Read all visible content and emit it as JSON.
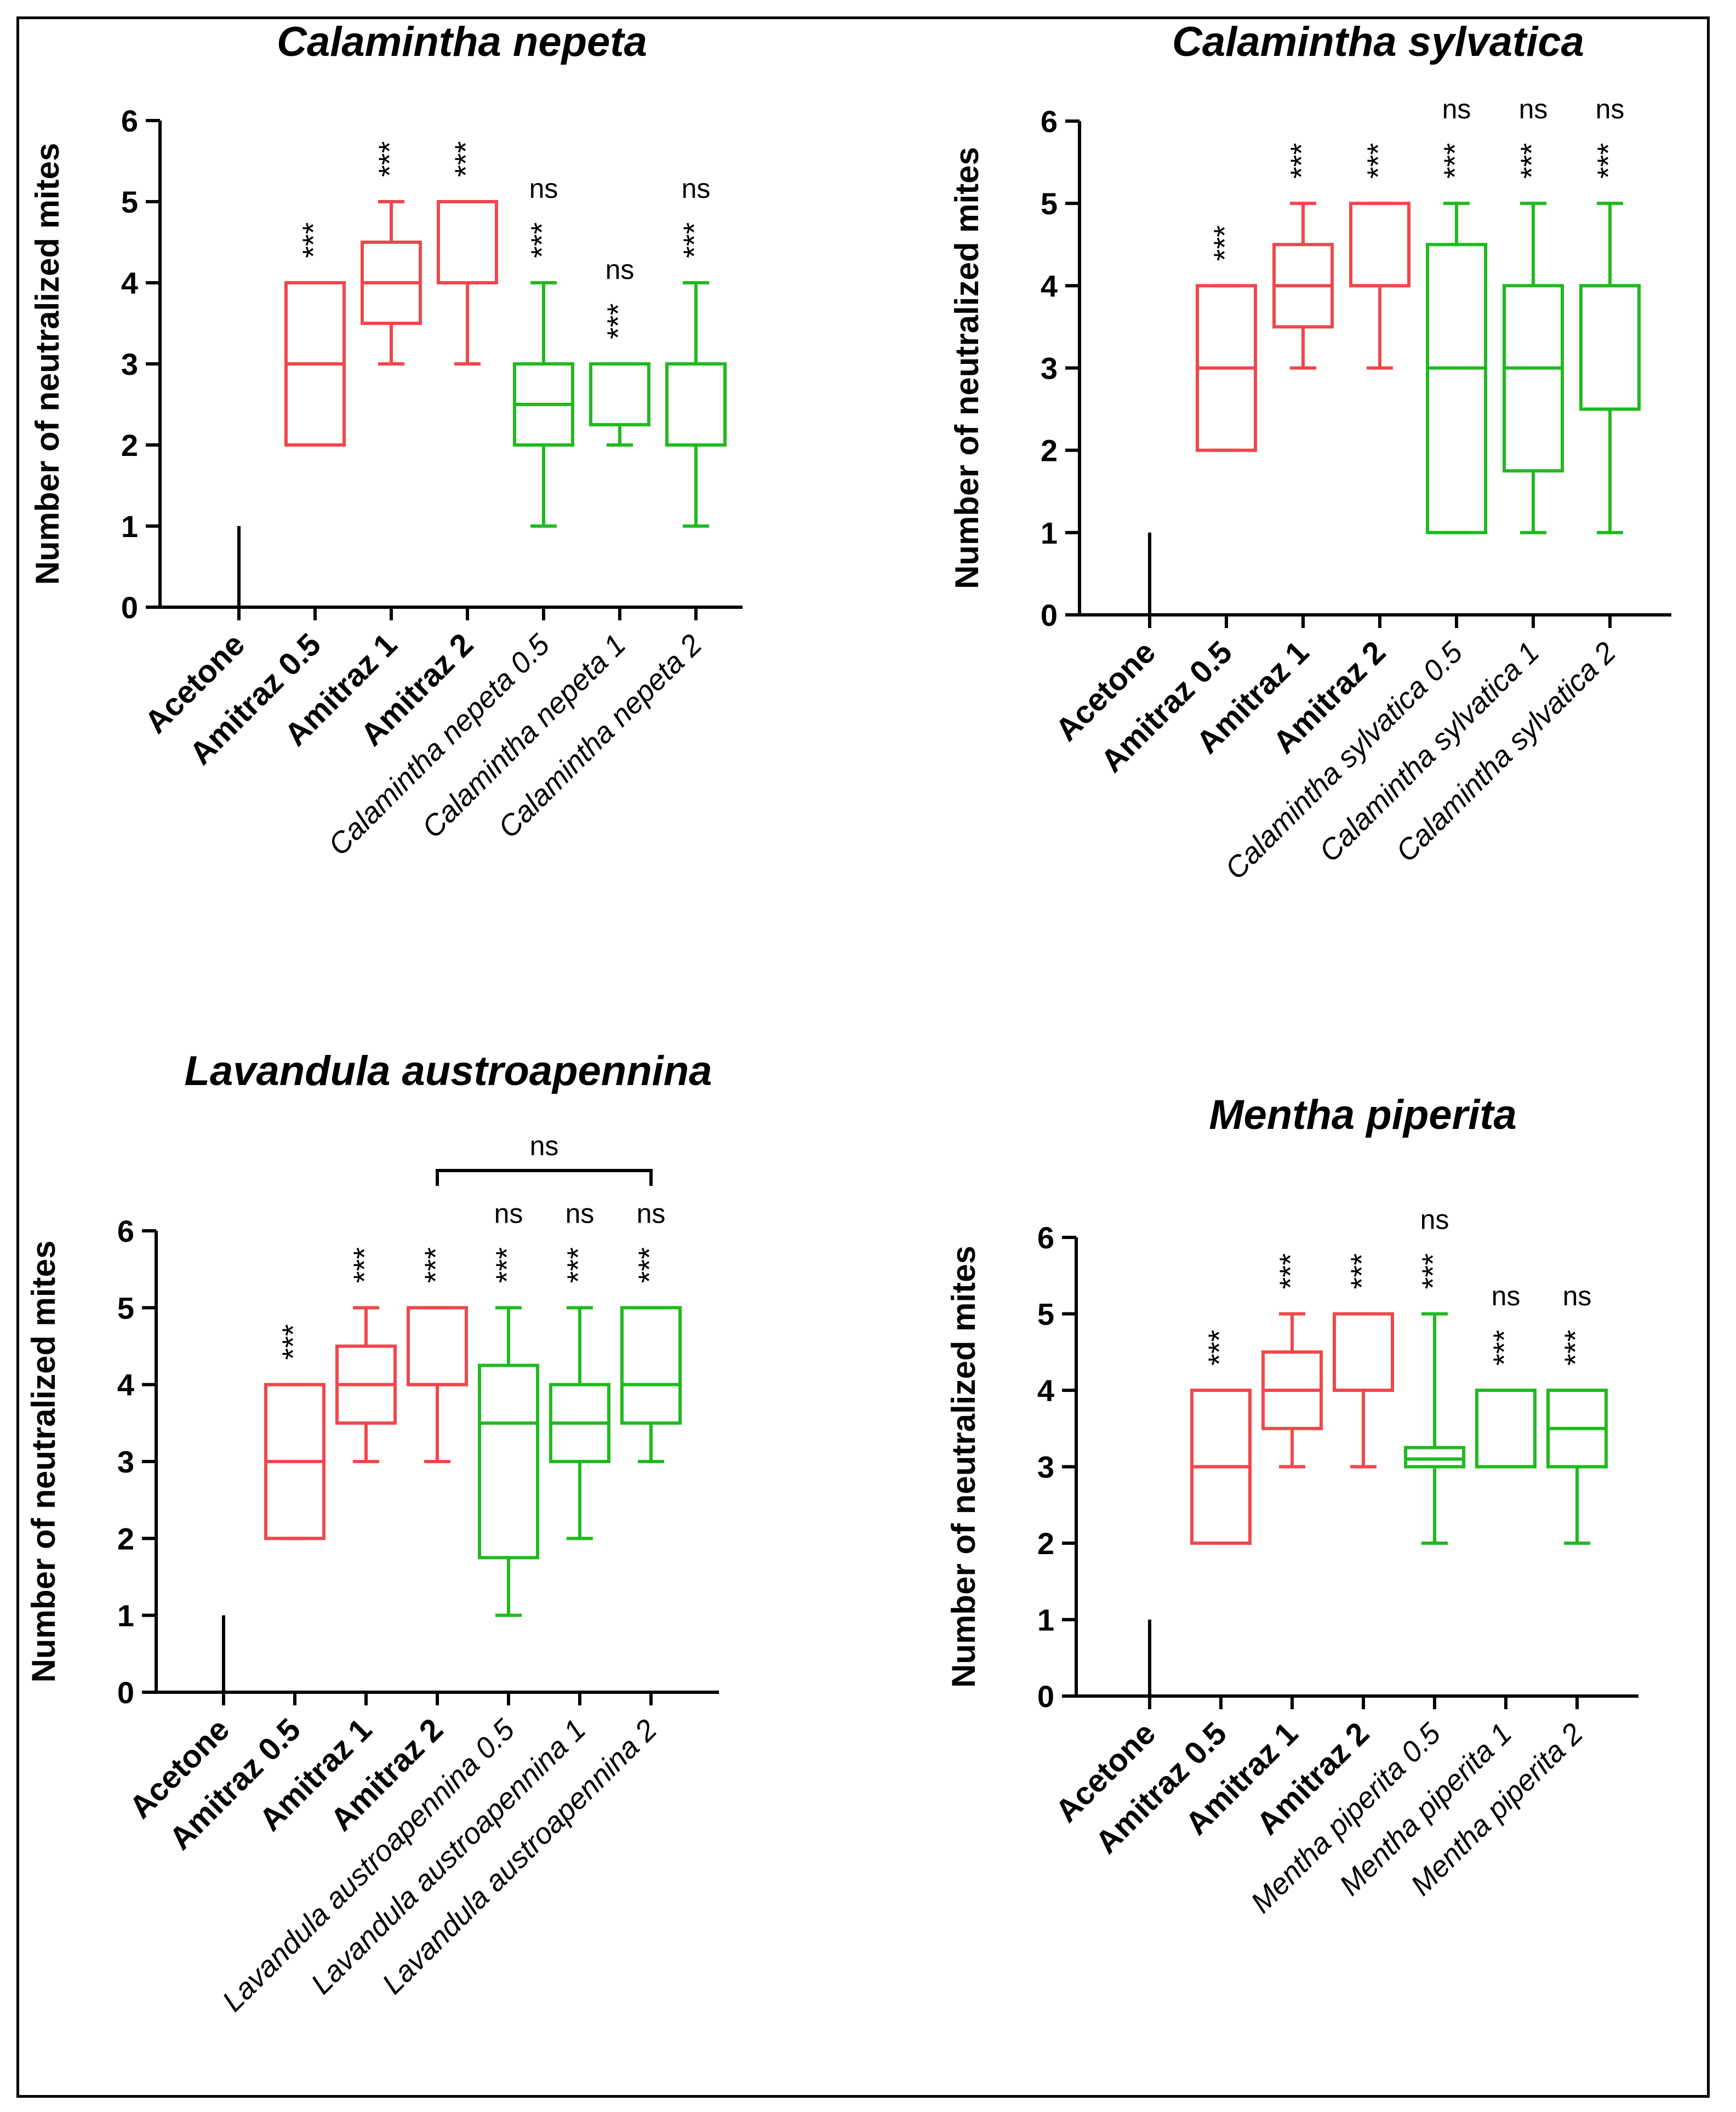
{
  "colors": {
    "control": "#000000",
    "amitraz": "#f0474c",
    "essential_oil": "#1fba1f",
    "axis": "#000000"
  },
  "chart_data": [
    {
      "type": "box",
      "title": "Calamintha nepeta",
      "xlabel": "",
      "ylabel": "Number of neutralized mites",
      "ylim": [
        0,
        6
      ],
      "yticks": [
        "0",
        "1",
        "2",
        "3",
        "4",
        "5",
        "6"
      ],
      "categories": [
        "Acetone",
        "Amitraz 0.5",
        "Amitraz 1",
        "Amitraz 2",
        "Calamintha nepeta 0.5",
        "Calamintha nepeta 1",
        "Calamintha nepeta 2"
      ],
      "category_style": [
        "bold",
        "bold",
        "bold",
        "bold",
        "italic",
        "italic",
        "italic"
      ],
      "groups": [
        "control",
        "amitraz",
        "amitraz",
        "amitraz",
        "essential_oil",
        "essential_oil",
        "essential_oil"
      ],
      "boxes": [
        {
          "min": 0,
          "q1": 0,
          "median": 0,
          "q3": 0,
          "max": 1
        },
        {
          "min": 2,
          "q1": 2,
          "median": 3,
          "q3": 4,
          "max": 4
        },
        {
          "min": 3,
          "q1": 3.5,
          "median": 4,
          "q3": 4.5,
          "max": 5
        },
        {
          "min": 3,
          "q1": 4,
          "median": 4,
          "q3": 5,
          "max": 5
        },
        {
          "min": 1,
          "q1": 2,
          "median": 2.5,
          "q3": 3,
          "max": 4
        },
        {
          "min": 2,
          "q1": 2.25,
          "median": 3,
          "q3": 3,
          "max": 3
        },
        {
          "min": 1,
          "q1": 2,
          "median": 3,
          "q3": 3,
          "max": 4
        }
      ],
      "significance": [
        "",
        "***",
        "***",
        "***",
        "***",
        "***",
        "***"
      ],
      "comparison_note": [
        "",
        "",
        "",
        "",
        "ns",
        "ns",
        "ns"
      ],
      "bracket": null
    },
    {
      "type": "box",
      "title": "Calamintha sylvatica",
      "xlabel": "",
      "ylabel": "Number of neutralized mites",
      "ylim": [
        0,
        6
      ],
      "yticks": [
        "0",
        "1",
        "2",
        "3",
        "4",
        "5",
        "6"
      ],
      "categories": [
        "Acetone",
        "Amitraz 0.5",
        "Amitraz 1",
        "Amitraz 2",
        "Calamintha sylvatica 0.5",
        "Calamintha sylvatica 1",
        "Calamintha sylvatica 2"
      ],
      "category_style": [
        "bold",
        "bold",
        "bold",
        "bold",
        "italic",
        "italic",
        "italic"
      ],
      "groups": [
        "control",
        "amitraz",
        "amitraz",
        "amitraz",
        "essential_oil",
        "essential_oil",
        "essential_oil"
      ],
      "boxes": [
        {
          "min": 0,
          "q1": 0,
          "median": 0,
          "q3": 0,
          "max": 1
        },
        {
          "min": 2,
          "q1": 2,
          "median": 3,
          "q3": 4,
          "max": 4
        },
        {
          "min": 3,
          "q1": 3.5,
          "median": 4,
          "q3": 4.5,
          "max": 5
        },
        {
          "min": 3,
          "q1": 4,
          "median": 4,
          "q3": 5,
          "max": 5
        },
        {
          "min": 1,
          "q1": 1,
          "median": 3,
          "q3": 4.5,
          "max": 5
        },
        {
          "min": 1,
          "q1": 1.75,
          "median": 3,
          "q3": 4,
          "max": 5
        },
        {
          "min": 1,
          "q1": 2.5,
          "median": 4,
          "q3": 4,
          "max": 5
        }
      ],
      "significance": [
        "",
        "***",
        "***",
        "***",
        "***",
        "***",
        "***"
      ],
      "comparison_note": [
        "",
        "",
        "",
        "",
        "ns",
        "ns",
        "ns"
      ],
      "bracket": null
    },
    {
      "type": "box",
      "title": "Lavandula austroapennina",
      "xlabel": "",
      "ylabel": "Number of neutralized mites",
      "ylim": [
        0,
        6
      ],
      "yticks": [
        "0",
        "1",
        "2",
        "3",
        "4",
        "5",
        "6"
      ],
      "categories": [
        "Acetone",
        "Amitraz 0.5",
        "Amitraz 1",
        "Amitraz 2",
        "Lavandula austroapennina 0.5",
        "Lavandula austroapennina 1",
        "Lavandula austroapennina 2"
      ],
      "category_style": [
        "bold",
        "bold",
        "bold",
        "bold",
        "italic",
        "italic",
        "italic"
      ],
      "groups": [
        "control",
        "amitraz",
        "amitraz",
        "amitraz",
        "essential_oil",
        "essential_oil",
        "essential_oil"
      ],
      "boxes": [
        {
          "min": 0,
          "q1": 0,
          "median": 0,
          "q3": 0,
          "max": 1
        },
        {
          "min": 2,
          "q1": 2,
          "median": 3,
          "q3": 4,
          "max": 4
        },
        {
          "min": 3,
          "q1": 3.5,
          "median": 4,
          "q3": 4.5,
          "max": 5
        },
        {
          "min": 3,
          "q1": 4,
          "median": 4,
          "q3": 5,
          "max": 5
        },
        {
          "min": 1,
          "q1": 1.75,
          "median": 3.5,
          "q3": 4.25,
          "max": 5
        },
        {
          "min": 2,
          "q1": 3,
          "median": 3.5,
          "q3": 4,
          "max": 5
        },
        {
          "min": 3,
          "q1": 3.5,
          "median": 4,
          "q3": 5,
          "max": 5
        }
      ],
      "significance": [
        "",
        "***",
        "***",
        "***",
        "***",
        "***",
        "***"
      ],
      "comparison_note": [
        "",
        "",
        "",
        "",
        "ns",
        "ns",
        "ns"
      ],
      "bracket": {
        "from": 3,
        "to": 6,
        "label": "ns"
      }
    },
    {
      "type": "box",
      "title": "Mentha piperita",
      "xlabel": "",
      "ylabel": "Number of neutralized mites",
      "ylim": [
        0,
        6
      ],
      "yticks": [
        "0",
        "1",
        "2",
        "3",
        "4",
        "5",
        "6"
      ],
      "categories": [
        "Acetone",
        "Amitraz 0.5",
        "Amitraz 1",
        "Amitraz 2",
        "Mentha piperita 0.5",
        "Mentha piperita 1",
        "Mentha piperita 2"
      ],
      "category_style": [
        "bold",
        "bold",
        "bold",
        "bold",
        "italic",
        "italic",
        "italic"
      ],
      "groups": [
        "control",
        "amitraz",
        "amitraz",
        "amitraz",
        "essential_oil",
        "essential_oil",
        "essential_oil"
      ],
      "boxes": [
        {
          "min": 0,
          "q1": 0,
          "median": 0,
          "q3": 0,
          "max": 1
        },
        {
          "min": 2,
          "q1": 2,
          "median": 3,
          "q3": 4,
          "max": 4
        },
        {
          "min": 3,
          "q1": 3.5,
          "median": 4,
          "q3": 4.5,
          "max": 5
        },
        {
          "min": 3,
          "q1": 4,
          "median": 4,
          "q3": 5,
          "max": 5
        },
        {
          "min": 2,
          "q1": 3,
          "median": 3.1,
          "q3": 3.25,
          "max": 5
        },
        {
          "min": 3,
          "q1": 3,
          "median": 3,
          "q3": 4,
          "max": 4
        },
        {
          "min": 2,
          "q1": 3,
          "median": 3.5,
          "q3": 4,
          "max": 4
        }
      ],
      "significance": [
        "",
        "***",
        "***",
        "***",
        "***",
        "***",
        "***"
      ],
      "comparison_note": [
        "",
        "",
        "",
        "",
        "ns",
        "ns",
        "ns"
      ],
      "bracket": null
    }
  ]
}
